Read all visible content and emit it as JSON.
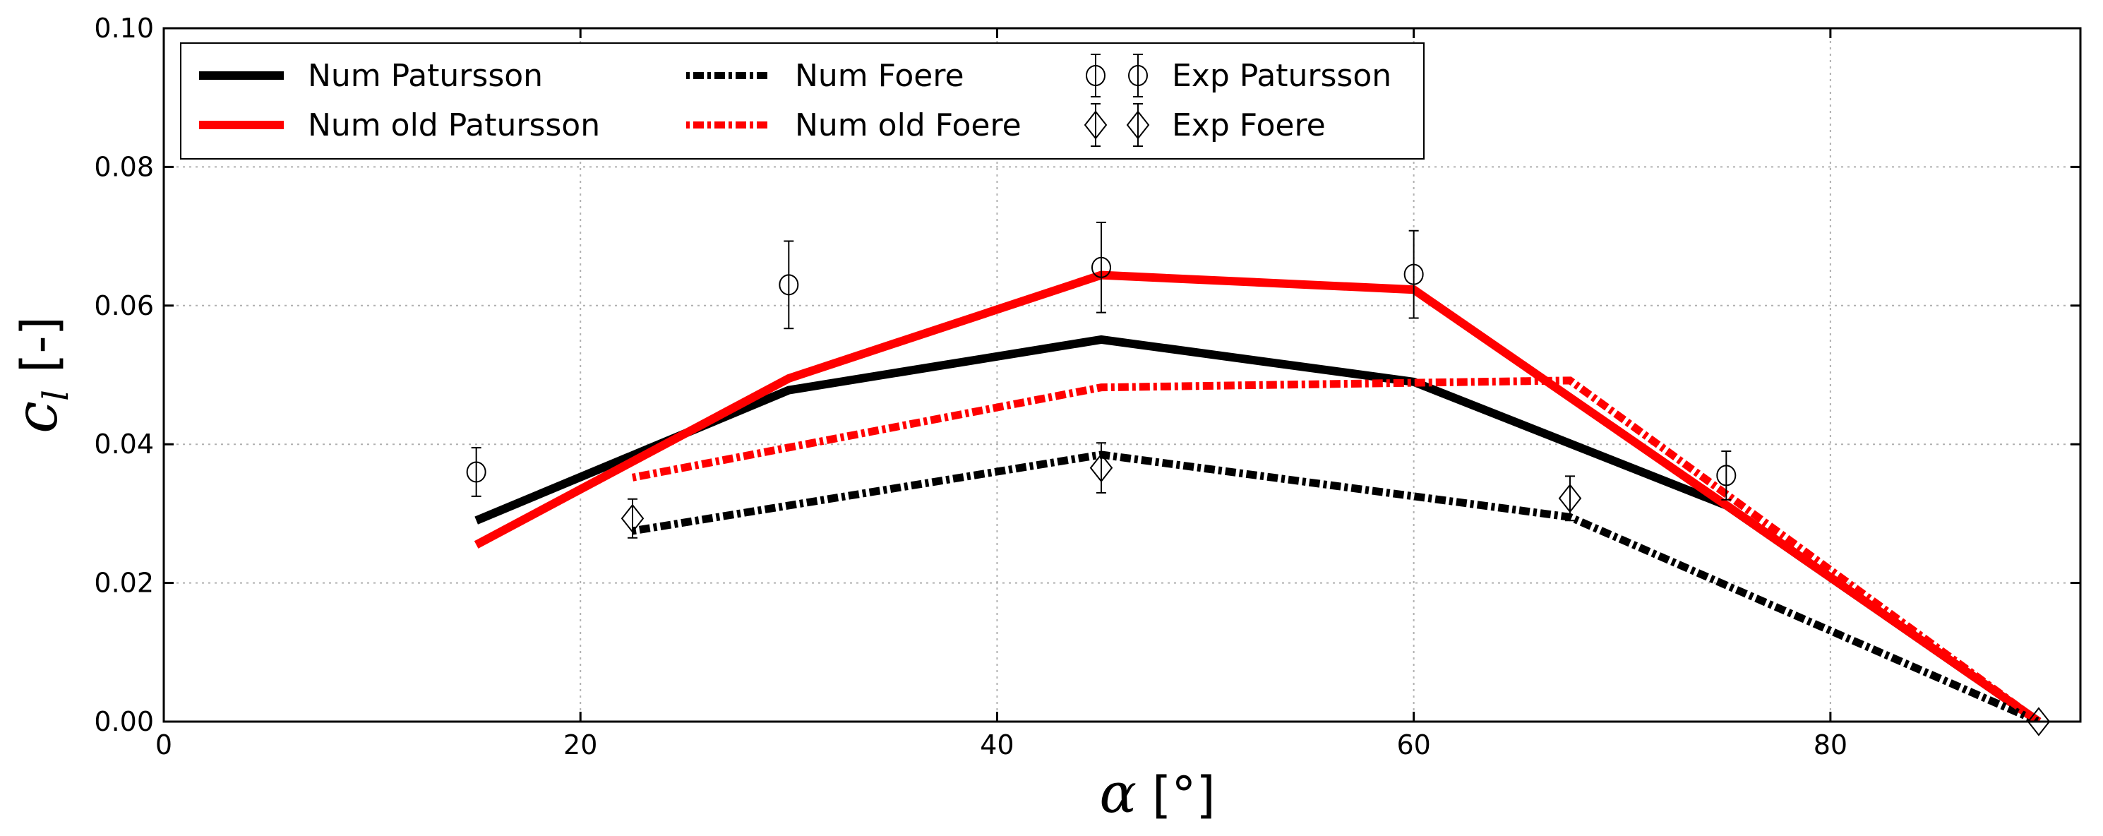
{
  "chart_data": {
    "type": "line",
    "title": "",
    "xlabel": "α [°]",
    "xlabel_symbol": "α",
    "xlabel_unit": "[°]",
    "ylabel": "c_l [-]",
    "ylabel_symbol": "c",
    "ylabel_subscript": "l",
    "ylabel_unit": "[-]",
    "xlim": [
      0,
      92
    ],
    "ylim": [
      0.0,
      0.1
    ],
    "xticks": [
      0,
      20,
      40,
      60,
      80
    ],
    "yticks": [
      0.0,
      0.02,
      0.04,
      0.06,
      0.08,
      0.1
    ],
    "xtick_labels": [
      "0",
      "20",
      "40",
      "60",
      "80"
    ],
    "ytick_labels": [
      "0.00",
      "0.02",
      "0.04",
      "0.06",
      "0.08",
      "0.10"
    ],
    "grid": true,
    "legend_position": "top-left",
    "series": [
      {
        "name": "Num Patursson",
        "kind": "line",
        "color": "#000000",
        "style": "solid",
        "x": [
          15,
          30,
          45,
          60,
          75,
          90
        ],
        "y": [
          0.029,
          0.0478,
          0.0551,
          0.049,
          0.0312,
          0.0
        ]
      },
      {
        "name": "Num old Patursson",
        "kind": "line",
        "color": "#ff0000",
        "style": "solid",
        "x": [
          15,
          30,
          45,
          60,
          75,
          90
        ],
        "y": [
          0.0255,
          0.0495,
          0.0644,
          0.0623,
          0.0312,
          0.0
        ]
      },
      {
        "name": "Num Foere",
        "kind": "line",
        "color": "#000000",
        "style": "dashdot",
        "x": [
          22.5,
          45,
          67.5,
          90
        ],
        "y": [
          0.0275,
          0.0385,
          0.0295,
          0.0
        ]
      },
      {
        "name": "Num old Foere",
        "kind": "line",
        "color": "#ff0000",
        "style": "dashdot",
        "x": [
          22.5,
          45,
          67.5,
          90
        ],
        "y": [
          0.0352,
          0.0482,
          0.0492,
          0.0
        ]
      },
      {
        "name": "Exp Patursson",
        "kind": "errorbar",
        "marker": "circle",
        "color": "#000000",
        "x": [
          15,
          30,
          45,
          60,
          75
        ],
        "y": [
          0.036,
          0.063,
          0.0655,
          0.0645,
          0.0355
        ],
        "yerr": [
          0.0035,
          0.0063,
          0.0065,
          0.0063,
          0.0035
        ]
      },
      {
        "name": "Exp Foere",
        "kind": "errorbar",
        "marker": "diamond",
        "color": "#000000",
        "x": [
          22.5,
          45,
          67.5,
          90
        ],
        "y": [
          0.0293,
          0.0366,
          0.0322,
          0.0
        ],
        "yerr": [
          0.0028,
          0.0036,
          0.0032,
          0.0
        ]
      }
    ]
  }
}
